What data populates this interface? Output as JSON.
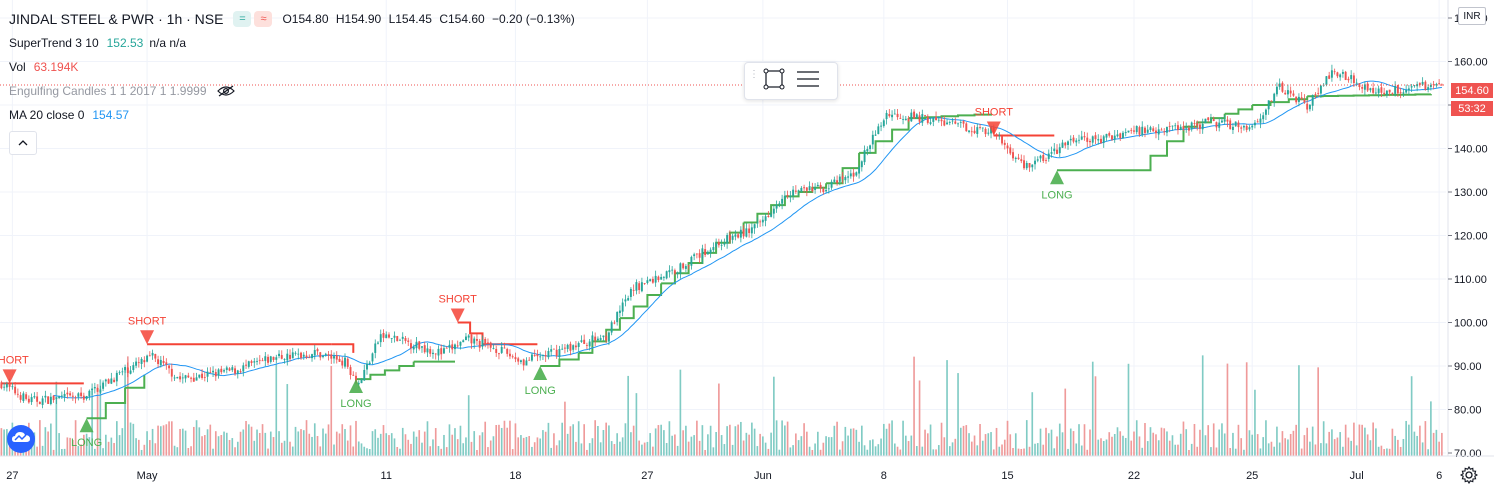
{
  "header": {
    "symbol_title": "JINDAL STEEL & PWR · 1h · NSE",
    "ohlc": {
      "open": "O154.80",
      "high": "H154.90",
      "low": "L154.45",
      "close": "C154.60",
      "change": "−0.20 (−0.13%)"
    },
    "pill_eq": "=",
    "pill_wave": "≈"
  },
  "indicators": [
    {
      "name": "SuperTrend 3 10",
      "value": "152.53",
      "extra": "n/a n/a"
    },
    {
      "name": "Vol",
      "value": "63.194K"
    },
    {
      "name": "Engulfing Candles 1 1 2017 1 1.9999"
    },
    {
      "name": "MA 20 close 0",
      "value": "154.57"
    }
  ],
  "currency_badge": "INR",
  "last_price_tag": "154.60",
  "countdown_tag": "53:32",
  "colors": {
    "up": "#26a69a",
    "down": "#ef5350",
    "supertrend_up": "#4caf50",
    "supertrend_down": "#f44336",
    "ma": "#2196f3",
    "vol_up": "#80cbc4",
    "vol_down": "#ef9a9a",
    "grid": "#f0f3fa"
  },
  "chart_data": {
    "type": "candlestick",
    "title": "JINDAL STEEL & PWR · 1h · NSE",
    "y_axis": {
      "ticks": [
        "70.00",
        "80.00",
        "90.00",
        "100.00",
        "110.00",
        "120.00",
        "130.00",
        "140.00",
        "150.00",
        "160.00",
        "170.00"
      ],
      "ylim": [
        70,
        174
      ]
    },
    "x_axis": {
      "ticks": [
        "27",
        "May",
        "11",
        "18",
        "27",
        "Jun",
        "8",
        "15",
        "22",
        "25",
        "Jul",
        "6"
      ],
      "tick_bars": [
        4,
        53,
        140,
        187,
        235,
        277,
        321,
        366,
        412,
        455,
        493,
        523
      ]
    },
    "bar_count": 525,
    "price_path": [
      [
        0,
        86
      ],
      [
        10,
        82
      ],
      [
        30,
        83
      ],
      [
        45,
        89
      ],
      [
        55,
        92
      ],
      [
        65,
        87
      ],
      [
        85,
        89
      ],
      [
        100,
        92
      ],
      [
        115,
        93
      ],
      [
        125,
        91
      ],
      [
        130,
        86
      ],
      [
        138,
        97
      ],
      [
        150,
        95
      ],
      [
        160,
        93
      ],
      [
        170,
        96
      ],
      [
        180,
        94
      ],
      [
        190,
        91
      ],
      [
        200,
        93
      ],
      [
        210,
        95
      ],
      [
        220,
        97
      ],
      [
        230,
        108
      ],
      [
        245,
        112
      ],
      [
        260,
        118
      ],
      [
        275,
        122
      ],
      [
        285,
        130
      ],
      [
        300,
        131
      ],
      [
        310,
        134
      ],
      [
        322,
        148
      ],
      [
        335,
        147
      ],
      [
        350,
        145
      ],
      [
        360,
        144
      ],
      [
        372,
        136
      ],
      [
        380,
        138
      ],
      [
        390,
        142
      ],
      [
        400,
        142
      ],
      [
        410,
        144
      ],
      [
        430,
        145
      ],
      [
        440,
        146
      ],
      [
        455,
        145
      ],
      [
        465,
        154
      ],
      [
        475,
        150
      ],
      [
        485,
        158
      ],
      [
        500,
        153
      ],
      [
        520,
        154.6
      ]
    ],
    "supertrend": [
      [
        0,
        86,
        "down"
      ],
      [
        30,
        86,
        "down"
      ],
      [
        31,
        78,
        "up"
      ],
      [
        45,
        85,
        "up"
      ],
      [
        52,
        88,
        "up"
      ],
      [
        53,
        95,
        "down"
      ],
      [
        120,
        95,
        "down"
      ],
      [
        128,
        93,
        "down"
      ],
      [
        129,
        87,
        "up"
      ],
      [
        150,
        91,
        "up"
      ],
      [
        165,
        91,
        "up"
      ],
      [
        166,
        100,
        "down"
      ],
      [
        175,
        95,
        "down"
      ],
      [
        195,
        95,
        "down"
      ],
      [
        196,
        90,
        "up"
      ],
      [
        210,
        93,
        "up"
      ],
      [
        225,
        101,
        "up"
      ],
      [
        240,
        109,
        "up"
      ],
      [
        255,
        116,
        "up"
      ],
      [
        270,
        123,
        "up"
      ],
      [
        285,
        129,
        "up"
      ],
      [
        300,
        132,
        "up"
      ],
      [
        312,
        139,
        "up"
      ],
      [
        330,
        147,
        "up"
      ],
      [
        360,
        148,
        "up"
      ],
      [
        361,
        143,
        "down"
      ],
      [
        383,
        143,
        "down"
      ],
      [
        384,
        135,
        "up"
      ],
      [
        412,
        135,
        "up"
      ],
      [
        430,
        145,
        "up"
      ],
      [
        445,
        148,
        "up"
      ],
      [
        455,
        150,
        "up"
      ],
      [
        475,
        152,
        "up"
      ],
      [
        520,
        152.5,
        "up"
      ]
    ],
    "signals": [
      {
        "label": "SHORT",
        "bar": 3,
        "price": 86,
        "dir": "down"
      },
      {
        "label": "LONG",
        "bar": 31,
        "price": 78,
        "dir": "up"
      },
      {
        "label": "SHORT",
        "bar": 53,
        "price": 95,
        "dir": "down"
      },
      {
        "label": "LONG",
        "bar": 129,
        "price": 87,
        "dir": "up"
      },
      {
        "label": "SHORT",
        "bar": 166,
        "price": 100,
        "dir": "down"
      },
      {
        "label": "LONG",
        "bar": 196,
        "price": 90,
        "dir": "up"
      },
      {
        "label": "SHORT",
        "bar": 361,
        "price": 143,
        "dir": "down"
      },
      {
        "label": "LONG",
        "bar": 384,
        "price": 135,
        "dir": "up"
      }
    ],
    "last_price": 154.6
  }
}
